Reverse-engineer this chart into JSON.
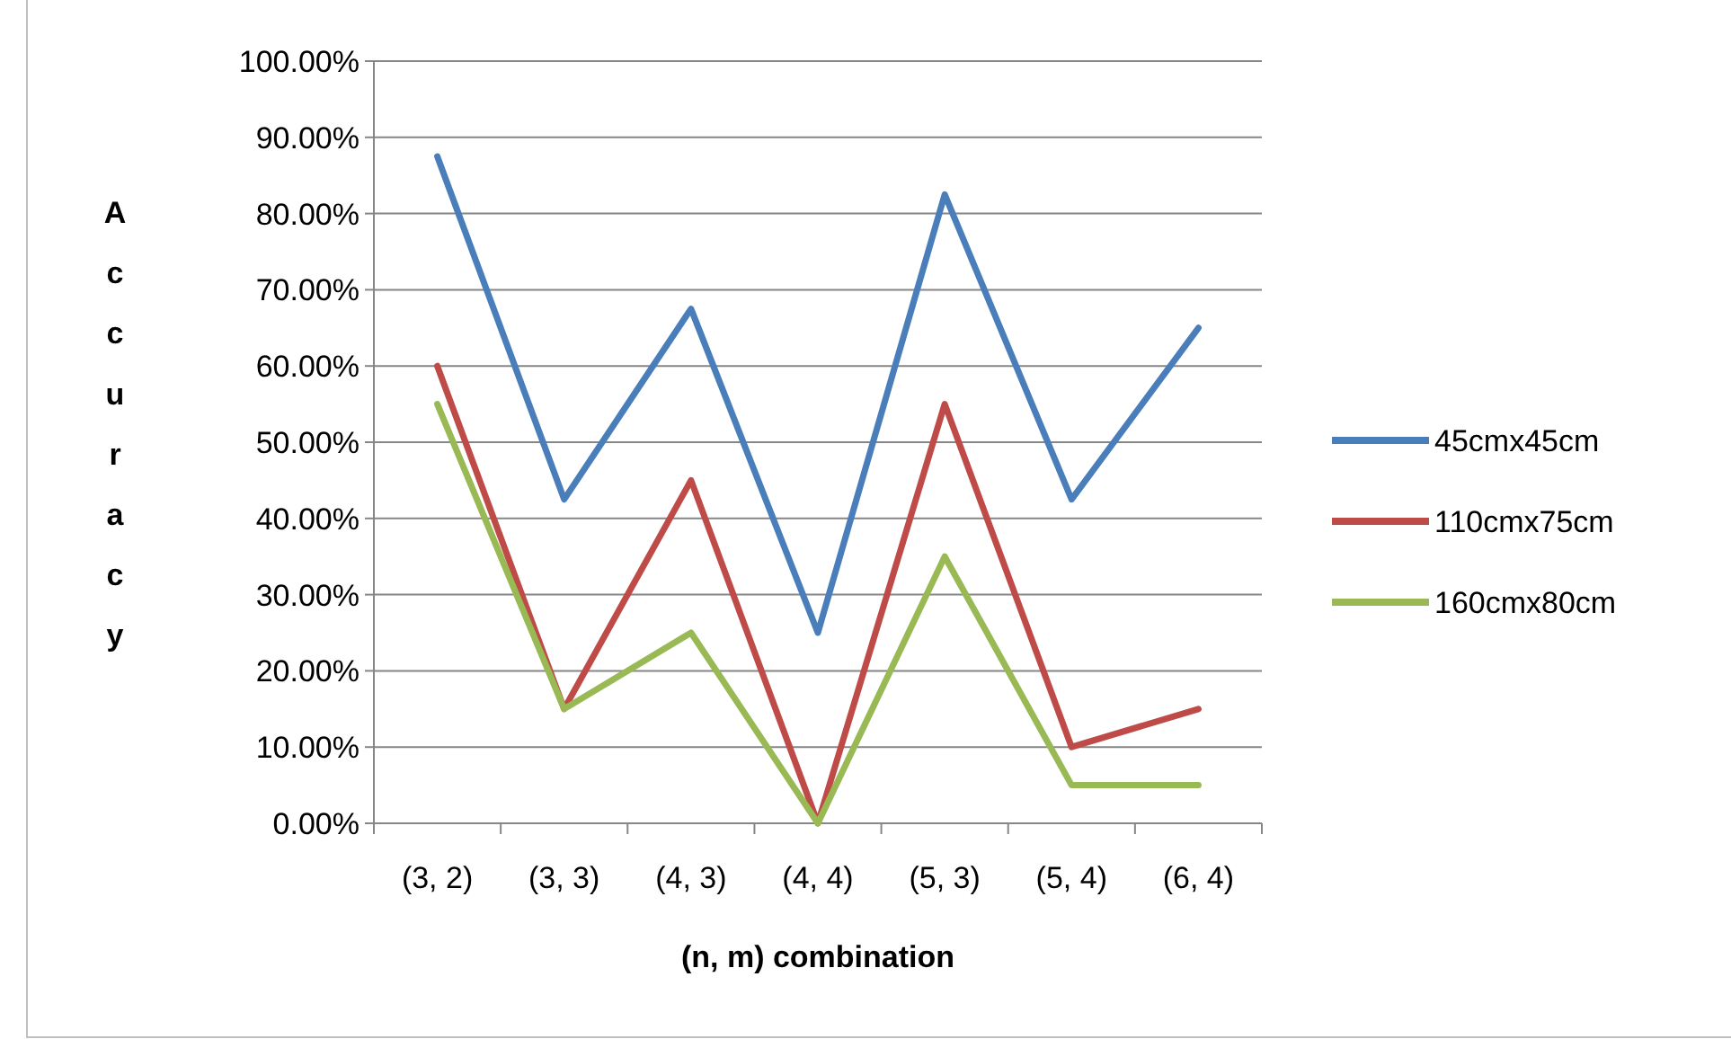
{
  "chart_data": {
    "type": "line",
    "xlabel": "(n, m) combination",
    "ylabel": "Accuracy",
    "categories": [
      "(3, 2)",
      "(3, 3)",
      "(4, 3)",
      "(4, 4)",
      "(5, 3)",
      "(5, 4)",
      "(6, 4)"
    ],
    "series": [
      {
        "name": "45cmx45cm",
        "color": "#4a7ebb",
        "values": [
          87.5,
          42.5,
          67.5,
          25,
          82.5,
          42.5,
          65
        ]
      },
      {
        "name": "110cmx75cm",
        "color": "#be4b48",
        "values": [
          60,
          15,
          45,
          0,
          55,
          10,
          15
        ]
      },
      {
        "name": "160cmx80cm",
        "color": "#98b954",
        "values": [
          55,
          15,
          25,
          0,
          35,
          5,
          5
        ]
      }
    ],
    "ylim": [
      0,
      100
    ],
    "yticks": [
      {
        "value": 0,
        "label": "0.00%"
      },
      {
        "value": 10,
        "label": "10.00%"
      },
      {
        "value": 20,
        "label": "20.00%"
      },
      {
        "value": 30,
        "label": "30.00%"
      },
      {
        "value": 40,
        "label": "40.00%"
      },
      {
        "value": 50,
        "label": "50.00%"
      },
      {
        "value": 60,
        "label": "60.00%"
      },
      {
        "value": 70,
        "label": "70.00%"
      },
      {
        "value": 80,
        "label": "80.00%"
      },
      {
        "value": 90,
        "label": "90.00%"
      },
      {
        "value": 100,
        "label": "100.00%"
      }
    ],
    "grid": "y",
    "legend": "right",
    "marker": "none",
    "line_style": "solid"
  }
}
